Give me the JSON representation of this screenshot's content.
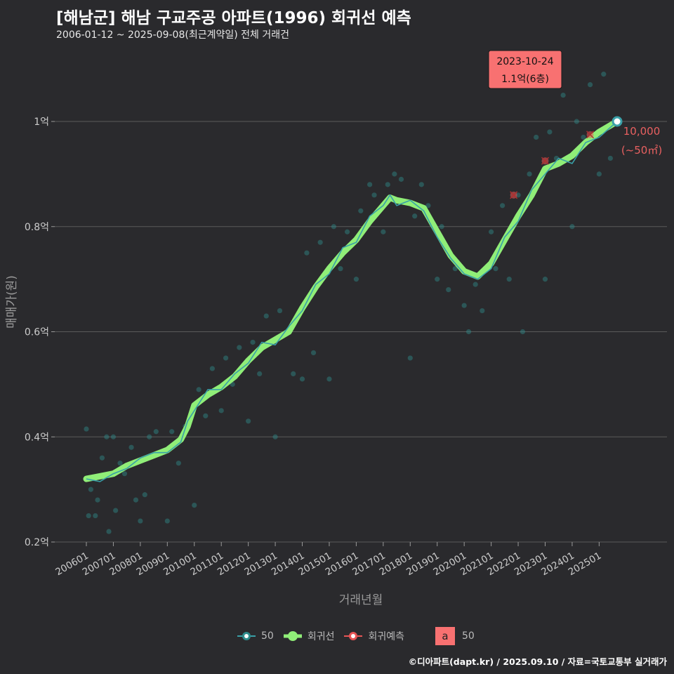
{
  "header": {
    "title": "[해남군] 해남 구교주공 아파트(1996) 회귀선 예측",
    "subtitle": "2006-01-12 ~ 2025-09-08(최근계약일) 전체 거래건"
  },
  "footer": {
    "credit": "©디아파트(dapt.kr) / 2025.09.10 / 자료=국토교통부 실거래가"
  },
  "legend": {
    "series_50": "50",
    "regression": "회귀선",
    "prediction": "회귀예측",
    "box_letter": "a",
    "box_label": "50"
  },
  "annotations": {
    "tooltip_date": "2023-10-24",
    "tooltip_price": "1.1억(6층)",
    "last_price": "10,000",
    "last_area": "(~50㎡)"
  },
  "colors": {
    "background": "#2a2a2d",
    "grid": "#5a5a5a",
    "scatter": "#2e8b8b",
    "line_50": "#3aa0a8",
    "regression": "#90ee78",
    "prediction": "#e85555",
    "tooltip_bg": "#f87171"
  },
  "chart_data": {
    "type": "line",
    "xlabel": "거래년월",
    "ylabel": "매매가(원)",
    "ylim": [
      0.2,
      1.2
    ],
    "y_unit": "억",
    "y_ticks": [
      {
        "value": 0.2,
        "label": "0.2억"
      },
      {
        "value": 0.4,
        "label": "0.4억"
      },
      {
        "value": 0.6,
        "label": "0.6억"
      },
      {
        "value": 0.8,
        "label": "0.8억"
      },
      {
        "value": 1.0,
        "label": "1억"
      }
    ],
    "x_ticks": [
      "200601",
      "200701",
      "200801",
      "200901",
      "201001",
      "201101",
      "201201",
      "201301",
      "201401",
      "201501",
      "201601",
      "201701",
      "201801",
      "201901",
      "202001",
      "202101",
      "202201",
      "202301",
      "202401",
      "202501"
    ],
    "x_range": [
      "2006-01",
      "2025-09"
    ],
    "series": [
      {
        "name": "회귀선",
        "points": [
          [
            "2006-01",
            0.32
          ],
          [
            "2006-07",
            0.325
          ],
          [
            "2007-01",
            0.33
          ],
          [
            "2007-07",
            0.345
          ],
          [
            "2008-01",
            0.355
          ],
          [
            "2008-07",
            0.365
          ],
          [
            "2009-01",
            0.375
          ],
          [
            "2009-07",
            0.395
          ],
          [
            "2009-10",
            0.42
          ],
          [
            "2010-01",
            0.46
          ],
          [
            "2010-07",
            0.48
          ],
          [
            "2011-01",
            0.495
          ],
          [
            "2011-07",
            0.515
          ],
          [
            "2012-01",
            0.545
          ],
          [
            "2012-07",
            0.57
          ],
          [
            "2013-01",
            0.585
          ],
          [
            "2013-07",
            0.6
          ],
          [
            "2014-01",
            0.645
          ],
          [
            "2014-07",
            0.685
          ],
          [
            "2015-01",
            0.72
          ],
          [
            "2015-07",
            0.75
          ],
          [
            "2016-01",
            0.775
          ],
          [
            "2016-07",
            0.81
          ],
          [
            "2017-01",
            0.84
          ],
          [
            "2017-04",
            0.855
          ],
          [
            "2017-07",
            0.85
          ],
          [
            "2018-01",
            0.845
          ],
          [
            "2018-07",
            0.835
          ],
          [
            "2019-01",
            0.79
          ],
          [
            "2019-07",
            0.745
          ],
          [
            "2020-01",
            0.715
          ],
          [
            "2020-07",
            0.705
          ],
          [
            "2021-01",
            0.73
          ],
          [
            "2021-07",
            0.775
          ],
          [
            "2022-01",
            0.82
          ],
          [
            "2022-07",
            0.86
          ],
          [
            "2023-01",
            0.91
          ],
          [
            "2023-07",
            0.92
          ],
          [
            "2024-01",
            0.935
          ],
          [
            "2024-07",
            0.96
          ],
          [
            "2025-01",
            0.98
          ],
          [
            "2025-09",
            1.0
          ]
        ]
      },
      {
        "name": "50",
        "points": [
          [
            "2006-01",
            0.32
          ],
          [
            "2006-07",
            0.315
          ],
          [
            "2007-01",
            0.33
          ],
          [
            "2007-07",
            0.34
          ],
          [
            "2008-01",
            0.36
          ],
          [
            "2008-07",
            0.37
          ],
          [
            "2009-01",
            0.37
          ],
          [
            "2009-07",
            0.39
          ],
          [
            "2009-10",
            0.43
          ],
          [
            "2010-01",
            0.45
          ],
          [
            "2010-07",
            0.49
          ],
          [
            "2011-01",
            0.49
          ],
          [
            "2011-07",
            0.52
          ],
          [
            "2012-01",
            0.54
          ],
          [
            "2012-07",
            0.58
          ],
          [
            "2013-01",
            0.575
          ],
          [
            "2013-07",
            0.61
          ],
          [
            "2014-01",
            0.64
          ],
          [
            "2014-07",
            0.69
          ],
          [
            "2015-01",
            0.71
          ],
          [
            "2015-07",
            0.76
          ],
          [
            "2016-01",
            0.77
          ],
          [
            "2016-07",
            0.82
          ],
          [
            "2017-01",
            0.84
          ],
          [
            "2017-04",
            0.86
          ],
          [
            "2017-07",
            0.84
          ],
          [
            "2018-01",
            0.85
          ],
          [
            "2018-07",
            0.83
          ],
          [
            "2019-01",
            0.78
          ],
          [
            "2019-07",
            0.74
          ],
          [
            "2020-01",
            0.71
          ],
          [
            "2020-07",
            0.7
          ],
          [
            "2021-01",
            0.72
          ],
          [
            "2021-07",
            0.78
          ],
          [
            "2022-01",
            0.81
          ],
          [
            "2022-07",
            0.87
          ],
          [
            "2023-01",
            0.9
          ],
          [
            "2023-07",
            0.93
          ],
          [
            "2024-01",
            0.92
          ],
          [
            "2024-07",
            0.96
          ],
          [
            "2025-01",
            0.97
          ],
          [
            "2025-09",
            1.0
          ]
        ]
      }
    ],
    "scatter": [
      [
        "2006-01",
        0.415
      ],
      [
        "2006-02",
        0.25
      ],
      [
        "2006-03",
        0.3
      ],
      [
        "2006-05",
        0.25
      ],
      [
        "2006-06",
        0.28
      ],
      [
        "2006-08",
        0.36
      ],
      [
        "2006-10",
        0.4
      ],
      [
        "2006-11",
        0.22
      ],
      [
        "2007-01",
        0.4
      ],
      [
        "2007-02",
        0.26
      ],
      [
        "2007-04",
        0.35
      ],
      [
        "2007-06",
        0.33
      ],
      [
        "2007-09",
        0.38
      ],
      [
        "2007-11",
        0.28
      ],
      [
        "2008-01",
        0.24
      ],
      [
        "2008-03",
        0.29
      ],
      [
        "2008-05",
        0.4
      ],
      [
        "2008-08",
        0.41
      ],
      [
        "2008-10",
        0.37
      ],
      [
        "2009-01",
        0.24
      ],
      [
        "2009-03",
        0.41
      ],
      [
        "2009-06",
        0.35
      ],
      [
        "2009-09",
        0.42
      ],
      [
        "2010-01",
        0.27
      ],
      [
        "2010-03",
        0.49
      ],
      [
        "2010-06",
        0.44
      ],
      [
        "2010-09",
        0.53
      ],
      [
        "2011-01",
        0.45
      ],
      [
        "2011-03",
        0.55
      ],
      [
        "2011-06",
        0.5
      ],
      [
        "2011-09",
        0.57
      ],
      [
        "2012-01",
        0.43
      ],
      [
        "2012-03",
        0.58
      ],
      [
        "2012-06",
        0.52
      ],
      [
        "2012-09",
        0.63
      ],
      [
        "2013-01",
        0.4
      ],
      [
        "2013-03",
        0.64
      ],
      [
        "2013-06",
        0.6
      ],
      [
        "2013-09",
        0.52
      ],
      [
        "2014-01",
        0.51
      ],
      [
        "2014-03",
        0.75
      ],
      [
        "2014-06",
        0.56
      ],
      [
        "2014-09",
        0.77
      ],
      [
        "2015-01",
        0.51
      ],
      [
        "2015-03",
        0.8
      ],
      [
        "2015-06",
        0.72
      ],
      [
        "2015-09",
        0.79
      ],
      [
        "2016-01",
        0.7
      ],
      [
        "2016-03",
        0.83
      ],
      [
        "2016-07",
        0.88
      ],
      [
        "2016-09",
        0.86
      ],
      [
        "2017-01",
        0.79
      ],
      [
        "2017-03",
        0.88
      ],
      [
        "2017-06",
        0.9
      ],
      [
        "2017-09",
        0.89
      ],
      [
        "2018-01",
        0.55
      ],
      [
        "2018-03",
        0.82
      ],
      [
        "2018-06",
        0.88
      ],
      [
        "2018-09",
        0.84
      ],
      [
        "2019-01",
        0.7
      ],
      [
        "2019-03",
        0.8
      ],
      [
        "2019-06",
        0.68
      ],
      [
        "2019-09",
        0.72
      ],
      [
        "2020-01",
        0.65
      ],
      [
        "2020-03",
        0.6
      ],
      [
        "2020-06",
        0.69
      ],
      [
        "2020-09",
        0.64
      ],
      [
        "2021-01",
        0.79
      ],
      [
        "2021-03",
        0.72
      ],
      [
        "2021-06",
        0.84
      ],
      [
        "2021-09",
        0.7
      ],
      [
        "2022-01",
        0.86
      ],
      [
        "2022-03",
        0.6
      ],
      [
        "2022-06",
        0.9
      ],
      [
        "2022-09",
        0.97
      ],
      [
        "2023-01",
        0.7
      ],
      [
        "2023-03",
        0.98
      ],
      [
        "2023-06",
        0.93
      ],
      [
        "2023-09",
        1.05
      ],
      [
        "2024-01",
        0.8
      ],
      [
        "2024-03",
        1.0
      ],
      [
        "2024-06",
        0.97
      ],
      [
        "2024-09",
        1.07
      ],
      [
        "2025-01",
        0.9
      ],
      [
        "2025-03",
        1.09
      ],
      [
        "2025-06",
        0.93
      ],
      [
        "2025-09",
        1.0
      ]
    ],
    "prediction_points": [
      [
        "2021-11",
        0.86
      ],
      [
        "2023-01",
        0.925
      ],
      [
        "2024-09",
        0.975
      ]
    ],
    "highlight_point": [
      "2025-09",
      1.0
    ]
  }
}
